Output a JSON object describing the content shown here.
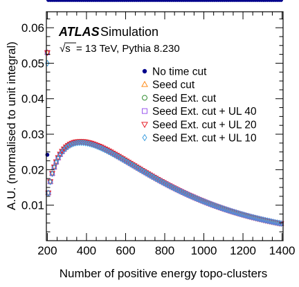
{
  "chart_data": {
    "type": "scatter",
    "header": {
      "brand": "ATLAS",
      "subtitle": "Simulation",
      "sqrt_symbol": "√s",
      "energy": "= 13 TeV, Pythia 8.230"
    },
    "xlabel": "Number of positive energy topo-clusters",
    "ylabel": "A.U. (normalised to unit integral)",
    "xlim": [
      195,
      1405
    ],
    "ylim": [
      0,
      0.0645
    ],
    "xticks": [
      200,
      400,
      600,
      800,
      1000,
      1200,
      1400
    ],
    "xtick_labels": [
      "200",
      "400",
      "600",
      "800",
      "1000",
      "1200",
      "1400"
    ],
    "yticks": [
      0.01,
      0.02,
      0.03,
      0.04,
      0.05,
      0.06
    ],
    "ytick_labels": [
      "0.01",
      "0.02",
      "0.03",
      "0.04",
      "0.05",
      "0.06"
    ],
    "legend_position": "top-right",
    "series": [
      {
        "name": "No time cut",
        "color": "#00008b",
        "marker": "filled-circle",
        "curve": {
          "type": "gamma-like",
          "peak_x": 430,
          "peak_y": 0.0242,
          "x_start": 200,
          "y_start": 0.0068,
          "x_end": 1400
        },
        "extra_points": [
          {
            "x": 200,
            "y": 0.0242
          }
        ]
      },
      {
        "name": "Seed cut",
        "color": "#ff8c1a",
        "marker": "open-triangle-up",
        "curve": {
          "type": "gamma-like",
          "peak_x": 370,
          "peak_y": 0.0278,
          "x_start": 200,
          "y_start": 0.0113,
          "x_end": 1400
        },
        "extra_points": [
          {
            "x": 200,
            "y": 0.053
          }
        ]
      },
      {
        "name": "Seed Ext. cut",
        "color": "#2e8b2e",
        "marker": "open-circle",
        "curve": {
          "type": "gamma-like",
          "peak_x": 370,
          "peak_y": 0.0278,
          "x_start": 200,
          "y_start": 0.0113,
          "x_end": 1400
        },
        "extra_points": [
          {
            "x": 200,
            "y": 0.053
          }
        ]
      },
      {
        "name": "Seed Ext. cut + UL 40",
        "color": "#9955ee",
        "marker": "open-square",
        "curve": {
          "type": "gamma-like",
          "peak_x": 370,
          "peak_y": 0.0278,
          "x_start": 200,
          "y_start": 0.0113,
          "x_end": 1400
        },
        "extra_points": [
          {
            "x": 200,
            "y": 0.053
          }
        ]
      },
      {
        "name": "Seed Ext. cut + UL 20",
        "color": "#e8202a",
        "marker": "open-triangle-down",
        "curve": {
          "type": "gamma-like",
          "peak_x": 370,
          "peak_y": 0.028,
          "x_start": 200,
          "y_start": 0.0113,
          "x_end": 1400
        },
        "extra_points": [
          {
            "x": 200,
            "y": 0.053
          }
        ]
      },
      {
        "name": "Seed Ext. cut + UL 10",
        "color": "#3fa0e0",
        "marker": "open-diamond",
        "curve": {
          "type": "gamma-like",
          "peak_x": 370,
          "peak_y": 0.0276,
          "x_start": 200,
          "y_start": 0.0113,
          "x_end": 1400
        },
        "extra_points": [
          {
            "x": 200,
            "y": 0.05
          }
        ]
      }
    ]
  }
}
